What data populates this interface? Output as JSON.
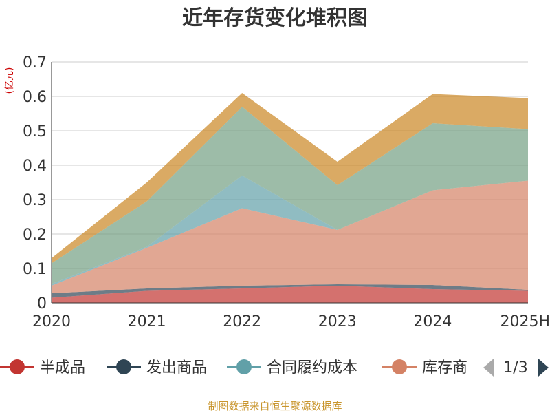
{
  "chart_data": {
    "type": "area",
    "stacked": true,
    "title": "近年存货变化堆积图",
    "ylabel": "(亿元)",
    "xlabel": "",
    "categories": [
      "2020",
      "2021",
      "2022",
      "2023",
      "2024",
      "2025H"
    ],
    "ylim": [
      0,
      0.7
    ],
    "yticks": [
      "0",
      "0.1",
      "0.2",
      "0.3",
      "0.4",
      "0.5",
      "0.6",
      "0.7"
    ],
    "grid": true,
    "series": [
      {
        "name": "半成品",
        "color": "#c23531",
        "values": [
          0.015,
          0.035,
          0.042,
          0.05,
          0.04,
          0.035
        ]
      },
      {
        "name": "发出商品",
        "color": "#2f4554",
        "values": [
          0.013,
          0.007,
          0.008,
          0.004,
          0.012,
          0.003
        ]
      },
      {
        "name": "",
        "color": "#d48265",
        "values": [
          0.022,
          0.118,
          0.225,
          0.158,
          0.275,
          0.317
        ]
      },
      {
        "name": "合同履约成本",
        "color": "#61a0a8",
        "values": [
          0.005,
          0.003,
          0.095,
          0.0,
          0.0,
          0.0
        ]
      },
      {
        "name": "",
        "color": "#749f83",
        "values": [
          0.06,
          0.132,
          0.2,
          0.13,
          0.195,
          0.15
        ]
      },
      {
        "name": "",
        "color": "#ca8622",
        "values": [
          0.015,
          0.055,
          0.04,
          0.068,
          0.085,
          0.09
        ]
      }
    ],
    "legend": {
      "position": "bottom",
      "items": [
        {
          "label": "半成品",
          "color": "#c23531"
        },
        {
          "label": "发出商品",
          "color": "#2f4554"
        },
        {
          "label": "合同履约成本",
          "color": "#61a0a8"
        },
        {
          "label": "库存商",
          "color": "#d48265"
        }
      ],
      "page": "1/3"
    },
    "source": "制图数据来自恒生聚源数据库"
  }
}
